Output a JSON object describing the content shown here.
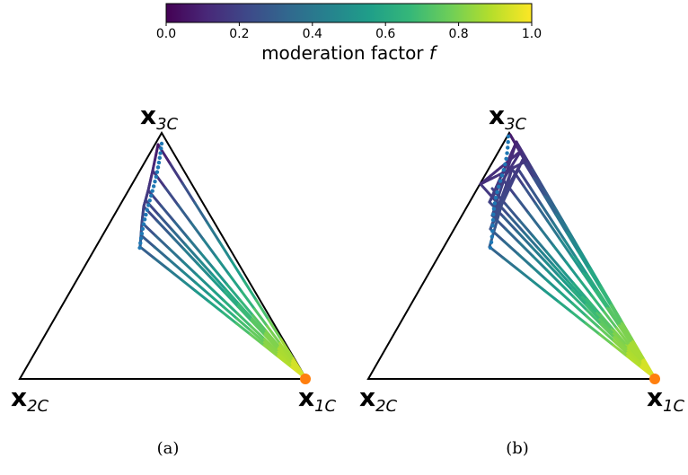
{
  "colorbar": {
    "label_main": "moderation factor ",
    "label_var": "f",
    "ticks": [
      "0.0",
      "0.2",
      "0.4",
      "0.6",
      "0.8",
      "1.0"
    ],
    "tick_values": [
      0.0,
      0.2,
      0.4,
      0.6,
      0.8,
      1.0
    ],
    "range": [
      0.0,
      1.0
    ],
    "colormap": "viridis",
    "stops": [
      "#440154",
      "#482878",
      "#3e4989",
      "#31688e",
      "#26828e",
      "#1f9e89",
      "#35b779",
      "#6ece58",
      "#b5de2b",
      "#fde725"
    ]
  },
  "panels": [
    {
      "caption": "(a)",
      "vertices": {
        "top": {
          "main": "x",
          "sub": "3C"
        },
        "left": {
          "main": "x",
          "sub": "2C"
        },
        "right": {
          "main": "x",
          "sub": "1C"
        }
      }
    },
    {
      "caption": "(b)",
      "vertices": {
        "top": {
          "main": "x",
          "sub": "3C"
        },
        "left": {
          "main": "x",
          "sub": "2C"
        },
        "right": {
          "main": "x",
          "sub": "1C"
        }
      }
    }
  ],
  "colors": {
    "triangle": "#000000",
    "start_marker": "#ff7f0e",
    "dots": "#1f77b4"
  }
}
